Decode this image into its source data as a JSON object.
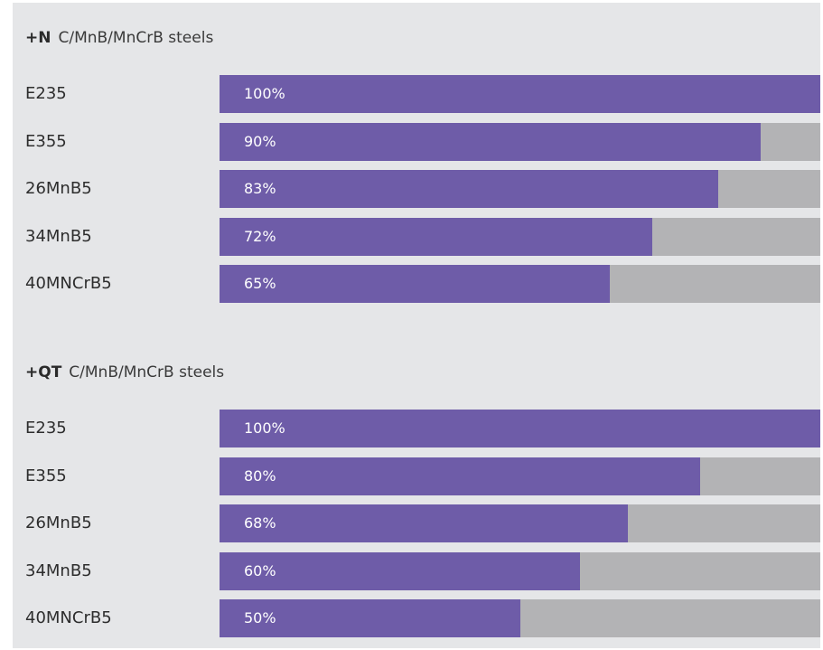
{
  "colors": {
    "background": "#e5e6e8",
    "bar_fill": "#6e5ca8",
    "bar_track": "#b3b3b5",
    "value_text": "#ffffff"
  },
  "chart_data": [
    {
      "type": "bar",
      "orientation": "horizontal",
      "title_prefix": "+N",
      "title": "C/MnB/MnCrB steels",
      "categories": [
        "E235",
        "E355",
        "26MnB5",
        "34MnB5",
        "40MNCrB5"
      ],
      "values": [
        100,
        90,
        83,
        72,
        65
      ],
      "value_labels": [
        "100%",
        "90%",
        "83%",
        "72%",
        "65%"
      ],
      "unit": "%",
      "xlim": [
        0,
        100
      ]
    },
    {
      "type": "bar",
      "orientation": "horizontal",
      "title_prefix": "+QT",
      "title": "C/MnB/MnCrB steels",
      "categories": [
        "E235",
        "E355",
        "26MnB5",
        "34MnB5",
        "40MNCrB5"
      ],
      "values": [
        100,
        80,
        68,
        60,
        50
      ],
      "value_labels": [
        "100%",
        "80%",
        "68%",
        "60%",
        "50%"
      ],
      "unit": "%",
      "xlim": [
        0,
        100
      ]
    }
  ]
}
